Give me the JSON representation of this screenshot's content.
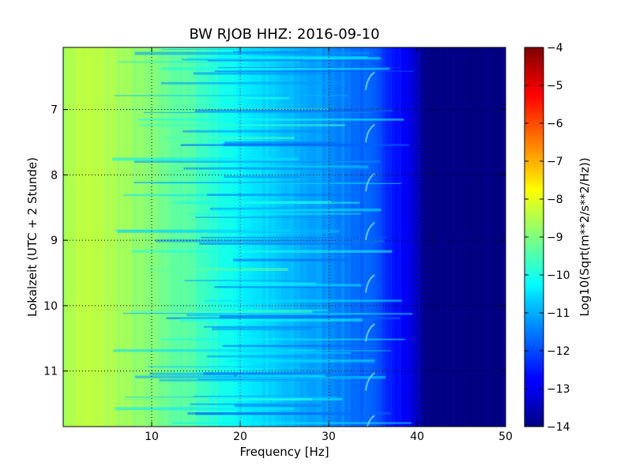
{
  "chart_data": {
    "type": "heatmap",
    "title": "BW RJOB HHZ: 2016-09-10",
    "xlabel": "Frequency [Hz]",
    "ylabel": "Lokalzeit (UTC + 2 Stunde)",
    "xlim": [
      0,
      50
    ],
    "ylim": [
      6.05,
      11.85
    ],
    "y_inverted": true,
    "grid": true,
    "x_ticks": [
      10,
      20,
      30,
      40,
      50
    ],
    "x_tick_labels": [
      "10",
      "20",
      "30",
      "40",
      "50"
    ],
    "y_ticks": [
      7,
      8,
      9,
      10,
      11
    ],
    "y_tick_labels": [
      "7",
      "8",
      "9",
      "10",
      "11"
    ],
    "colorscale": "jet",
    "colorbar": {
      "label": "Log10(Sqrt(m**2/s**2/Hz))",
      "range": [
        -14,
        -4
      ],
      "ticks": [
        -4,
        -5,
        -6,
        -7,
        -8,
        -9,
        -10,
        -11,
        -12,
        -13,
        -14
      ],
      "tick_labels": [
        "−4",
        "−5",
        "−6",
        "−7",
        "−8",
        "−9",
        "−10",
        "−11",
        "−12",
        "−13",
        "−14"
      ]
    },
    "frequency_profile": {
      "frequency_hz": [
        0,
        2,
        5,
        10,
        15,
        20,
        25,
        30,
        35,
        38,
        40,
        41,
        45,
        50
      ],
      "log10_amplitude": [
        -8.6,
        -8.4,
        -8.5,
        -9.0,
        -9.5,
        -10.3,
        -10.9,
        -11.3,
        -11.9,
        -12.6,
        -13.3,
        -14.0,
        -14.0,
        -14.0
      ]
    }
  }
}
